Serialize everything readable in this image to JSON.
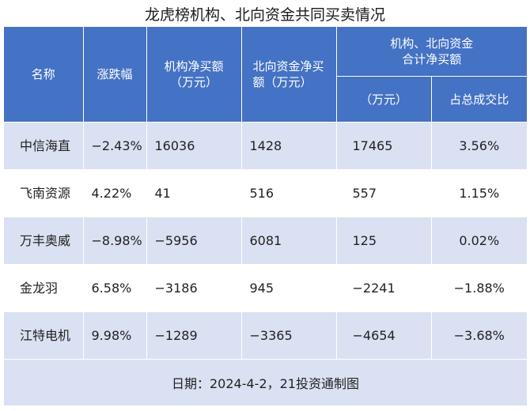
{
  "title": "龙虎榜机构、北向资金共同买卖情况",
  "header": {
    "name": "名称",
    "change": "涨跌幅",
    "inst_net_buy": "机构净买额\n（万元）",
    "north_net_buy": "北向资金净买\n额（万元）",
    "combined_group": "机构、北向资金\n合计净买额",
    "combined_amount": "（万元）",
    "combined_share": "占总成交比"
  },
  "rows": [
    {
      "name": "中信海直",
      "change": "−2.43%",
      "inst": "16036",
      "north": "1428",
      "total": "17465",
      "share": "3.56%"
    },
    {
      "name": "飞南资源",
      "change": "4.22%",
      "inst": "41",
      "north": "516",
      "total": "557",
      "share": "1.15%"
    },
    {
      "name": "万丰奥威",
      "change": "−8.98%",
      "inst": "−5956",
      "north": "6081",
      "total": "125",
      "share": "0.02%"
    },
    {
      "name": "金龙羽",
      "change": "6.58%",
      "inst": "−3186",
      "north": "945",
      "total": "−2241",
      "share": "−1.88%"
    },
    {
      "name": "江特电机",
      "change": "9.98%",
      "inst": "−1289",
      "north": "−3365",
      "total": "−4654",
      "share": "−3.68%"
    }
  ],
  "footer": "日期：2024-4-2，21投资通制图",
  "colors": {
    "header_bg": "#4472c4",
    "band_bg": "#d9e1f2",
    "header_text": "#ffffff",
    "body_text": "#222222"
  }
}
